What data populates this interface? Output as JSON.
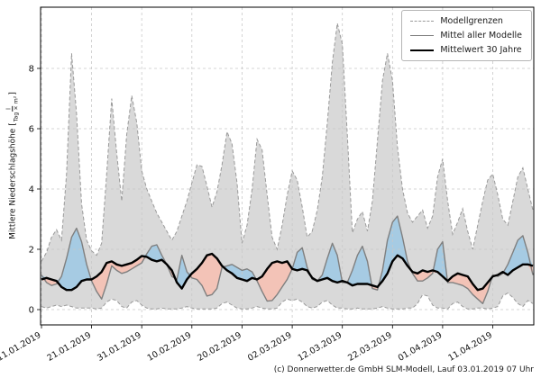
{
  "figure": {
    "caption": "(c) Donnerwetter.de GmbH SLM-Modell, Lauf 03.01.2019 07 Uhr"
  },
  "chart_data": {
    "type": "area",
    "title": "",
    "xlabel": "",
    "ylabel": "Mittlere Niederschlagshöhe [l/(Tag × m²)]",
    "ylabel_main": "Mittlere Niederschlagshöhe",
    "ylabel_bracket_open": "[",
    "ylabel_bracket_close": "]",
    "ylabel_unit_num": "l",
    "ylabel_unit_den": "Tag × m²",
    "grid": true,
    "ylim": [
      -0.55,
      10.05
    ],
    "yticks": [
      0,
      2,
      4,
      6,
      8
    ],
    "n_days": 99,
    "xtick_days": [
      0,
      10,
      20,
      30,
      40,
      50,
      60,
      70,
      80,
      90
    ],
    "xtick_labels": [
      "11.01.2019",
      "21.01.2019",
      "31.01.2019",
      "10.02.2019",
      "20.02.2019",
      "02.03.2019",
      "12.03.2019",
      "22.03.2019",
      "01.04.2019",
      "11.04.2019"
    ],
    "legend": {
      "position": "upper right",
      "entries": [
        {
          "label": "Modellgrenzen",
          "style": "dashed",
          "color": "#999999"
        },
        {
          "label": "Mittel aller Modelle",
          "style": "solid",
          "color": "#808080"
        },
        {
          "label": "Mittelwert 30 Jahre",
          "style": "solid-bold",
          "color": "#000000"
        }
      ]
    },
    "colors": {
      "band_fill": "#d9d9d9",
      "band_edge": "#9a9a9a",
      "above_fill": "#a6cbe3",
      "below_fill": "#f3c3b7",
      "mean_line": "#7f7f7f",
      "mean30_line": "#000000",
      "grid": "#c8c8c8"
    },
    "series": [
      {
        "key": "max",
        "name": "Modellgrenzen (Maximum)",
        "values": [
          1.6,
          1.9,
          2.4,
          2.65,
          2.3,
          4.5,
          8.5,
          6.5,
          3.5,
          2.3,
          1.95,
          1.8,
          2.2,
          4.5,
          7.0,
          5.2,
          3.6,
          5.8,
          7.1,
          6.2,
          4.6,
          4.0,
          3.6,
          3.2,
          2.9,
          2.6,
          2.3,
          2.6,
          3.1,
          3.6,
          4.2,
          4.8,
          4.75,
          4.1,
          3.4,
          3.9,
          4.8,
          5.9,
          5.5,
          4.2,
          2.2,
          2.8,
          4.0,
          5.65,
          5.3,
          3.8,
          2.4,
          2.0,
          2.8,
          3.8,
          4.6,
          4.3,
          3.4,
          2.4,
          2.6,
          3.3,
          4.4,
          6.2,
          8.2,
          9.5,
          8.8,
          5.8,
          2.55,
          3.0,
          3.25,
          2.6,
          3.6,
          5.6,
          7.6,
          8.5,
          7.6,
          5.4,
          4.0,
          3.2,
          2.9,
          3.1,
          3.3,
          2.7,
          3.1,
          4.4,
          5.0,
          3.6,
          2.5,
          2.9,
          3.35,
          2.6,
          2.0,
          2.8,
          3.6,
          4.3,
          4.5,
          3.8,
          3.0,
          2.8,
          3.6,
          4.4,
          4.7,
          4.0,
          3.3
        ]
      },
      {
        "key": "min",
        "name": "Modellgrenzen (Minimum)",
        "values": [
          0.1,
          0.05,
          0.1,
          0.15,
          0.1,
          0.15,
          0.1,
          0.05,
          0.05,
          0.05,
          0.05,
          0.02,
          0.05,
          0.25,
          0.35,
          0.3,
          0.1,
          0.05,
          0.25,
          0.3,
          0.15,
          0.05,
          0.02,
          0.02,
          0.05,
          0.02,
          0.02,
          0.02,
          0.05,
          0.1,
          0.05,
          0.02,
          0.02,
          0.02,
          0.02,
          0.05,
          0.2,
          0.25,
          0.15,
          0.05,
          0.02,
          0.02,
          0.05,
          0.1,
          0.05,
          0.02,
          0.02,
          0.05,
          0.25,
          0.35,
          0.3,
          0.35,
          0.25,
          0.1,
          0.05,
          0.1,
          0.25,
          0.3,
          0.15,
          0.05,
          0.05,
          0.02,
          0.02,
          0.05,
          0.02,
          0.02,
          0.02,
          0.05,
          0.1,
          0.05,
          0.02,
          0.02,
          0.02,
          0.05,
          0.05,
          0.2,
          0.5,
          0.45,
          0.15,
          0.05,
          0.05,
          0.02,
          0.2,
          0.25,
          0.1,
          0.02,
          0.02,
          0.05,
          0.05,
          0.02,
          0.05,
          0.1,
          0.45,
          0.55,
          0.4,
          0.2,
          0.1,
          0.3,
          0.2
        ]
      },
      {
        "key": "mean",
        "name": "Mittel aller Modelle",
        "values": [
          1.15,
          0.9,
          0.8,
          0.85,
          1.1,
          1.7,
          2.4,
          2.7,
          2.25,
          1.5,
          0.95,
          0.6,
          0.35,
          0.85,
          1.45,
          1.3,
          1.2,
          1.25,
          1.35,
          1.45,
          1.55,
          1.85,
          2.1,
          2.15,
          1.8,
          1.5,
          1.1,
          1.0,
          1.8,
          1.25,
          1.05,
          1.0,
          0.8,
          0.45,
          0.5,
          0.7,
          1.4,
          1.45,
          1.5,
          1.4,
          1.3,
          1.35,
          1.25,
          0.95,
          0.6,
          0.28,
          0.3,
          0.5,
          0.75,
          1.0,
          1.35,
          1.9,
          2.05,
          1.4,
          1.0,
          0.95,
          1.15,
          1.7,
          2.2,
          1.8,
          0.9,
          0.9,
          1.3,
          1.8,
          2.1,
          1.6,
          0.7,
          0.65,
          1.3,
          2.3,
          2.9,
          3.1,
          2.4,
          1.6,
          1.2,
          0.95,
          0.95,
          1.05,
          1.2,
          2.0,
          2.25,
          0.9,
          0.9,
          0.85,
          0.8,
          0.7,
          0.5,
          0.35,
          0.2,
          0.6,
          1.15,
          1.1,
          1.2,
          1.5,
          1.9,
          2.3,
          2.45,
          1.9,
          1.15
        ]
      },
      {
        "key": "mean30",
        "name": "Mittelwert 30 Jahre",
        "values": [
          1.0,
          1.05,
          1.0,
          0.95,
          0.75,
          0.65,
          0.65,
          0.75,
          0.95,
          1.0,
          1.0,
          1.1,
          1.25,
          1.55,
          1.6,
          1.5,
          1.45,
          1.5,
          1.55,
          1.65,
          1.78,
          1.75,
          1.65,
          1.6,
          1.65,
          1.5,
          1.3,
          0.9,
          0.7,
          1.0,
          1.2,
          1.35,
          1.55,
          1.8,
          1.85,
          1.7,
          1.45,
          1.3,
          1.2,
          1.05,
          1.0,
          0.95,
          1.05,
          1.0,
          1.1,
          1.35,
          1.55,
          1.6,
          1.55,
          1.6,
          1.35,
          1.3,
          1.35,
          1.3,
          1.05,
          0.95,
          1.0,
          1.05,
          0.95,
          0.9,
          0.95,
          0.9,
          0.8,
          0.85,
          0.85,
          0.85,
          0.8,
          0.75,
          0.95,
          1.2,
          1.6,
          1.8,
          1.7,
          1.45,
          1.25,
          1.2,
          1.3,
          1.25,
          1.3,
          1.25,
          1.1,
          0.95,
          1.1,
          1.2,
          1.15,
          1.1,
          0.85,
          0.65,
          0.7,
          0.9,
          1.1,
          1.15,
          1.25,
          1.15,
          1.3,
          1.4,
          1.5,
          1.5,
          1.45
        ]
      }
    ]
  }
}
